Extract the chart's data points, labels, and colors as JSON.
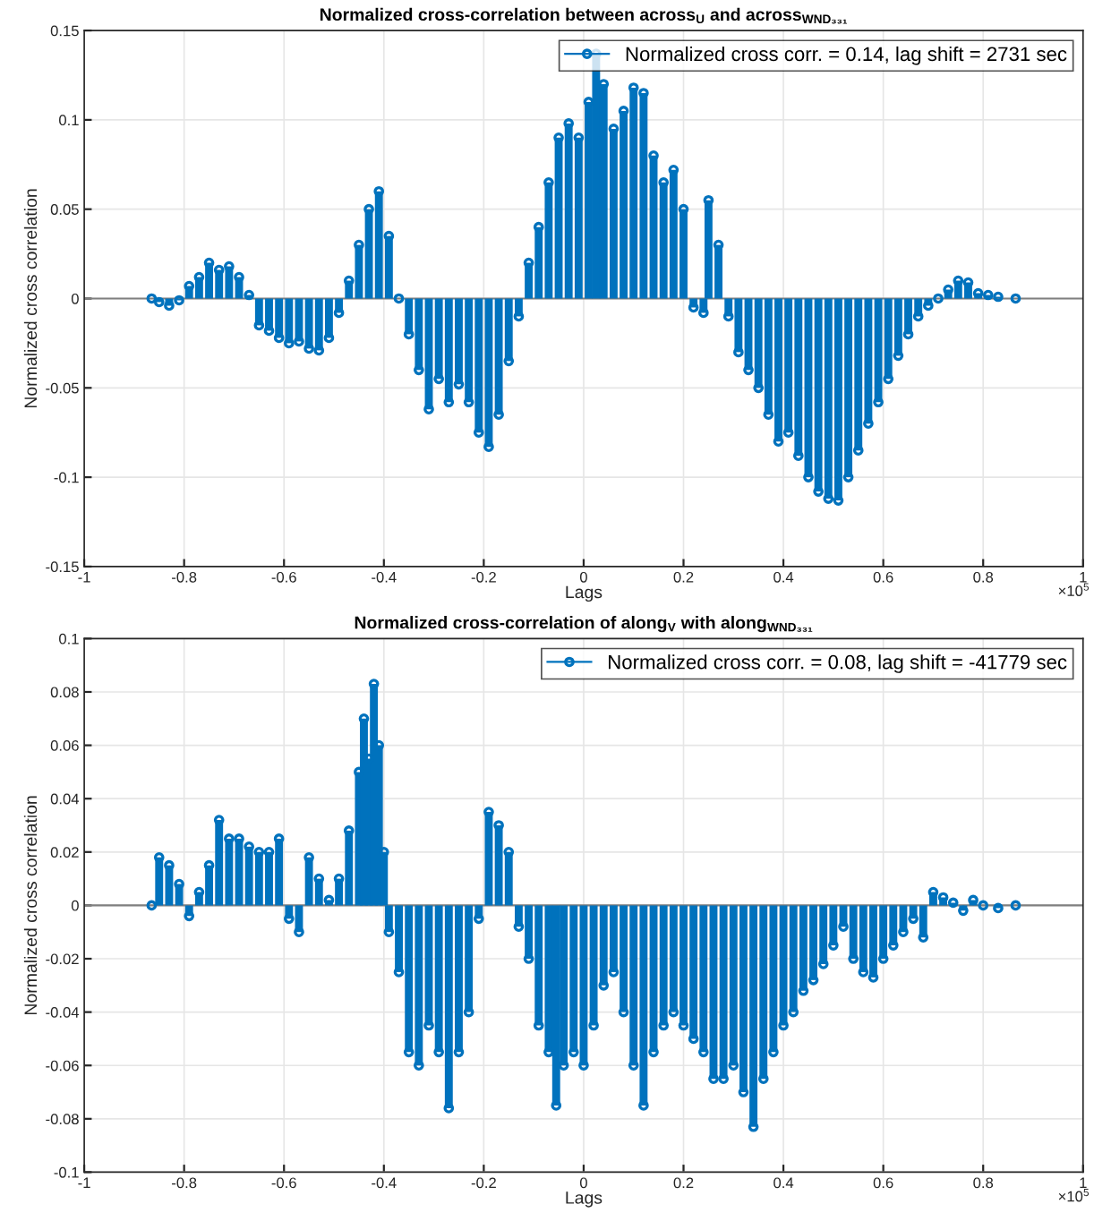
{
  "chart_data": [
    {
      "type": "lollipop",
      "title": "Normalized cross-correlation between across$_{U}$ and across$_{WND₃₃₁}$",
      "xlabel": "Lags",
      "ylabel": "Normalized cross correlation",
      "xlim": [
        -1,
        1
      ],
      "xticks": [
        -1,
        -0.8,
        -0.6,
        -0.4,
        -0.2,
        0,
        0.2,
        0.4,
        0.6,
        0.8,
        1
      ],
      "ylim": [
        -0.15,
        0.15
      ],
      "yticks": [
        -0.15,
        -0.1,
        -0.05,
        0,
        0.05,
        0.1,
        0.15
      ],
      "grid": true,
      "legend": "top right",
      "marker": "circle",
      "ref_lines": [
        {
          "axis": "y",
          "value": 0,
          "color": "#7f7f7f"
        }
      ],
      "annotations": [
        "×10$^{5}$"
      ],
      "series": [
        {
          "name": "Normalized cross corr. = 0.14, lag shift = 2731 sec",
          "color": "#0072bd",
          "x": [
            -0.865,
            -0.85,
            -0.83,
            -0.81,
            -0.79,
            -0.77,
            -0.75,
            -0.73,
            -0.71,
            -0.69,
            -0.67,
            -0.65,
            -0.63,
            -0.61,
            -0.59,
            -0.57,
            -0.55,
            -0.53,
            -0.51,
            -0.49,
            -0.47,
            -0.45,
            -0.43,
            -0.41,
            -0.39,
            -0.37,
            -0.35,
            -0.33,
            -0.31,
            -0.29,
            -0.27,
            -0.25,
            -0.23,
            -0.21,
            -0.19,
            -0.17,
            -0.15,
            -0.13,
            -0.11,
            -0.09,
            -0.07,
            -0.05,
            -0.03,
            -0.01,
            0.01,
            0.025,
            0.04,
            0.06,
            0.08,
            0.1,
            0.12,
            0.14,
            0.16,
            0.18,
            0.2,
            0.22,
            0.24,
            0.25,
            0.27,
            0.29,
            0.31,
            0.33,
            0.35,
            0.37,
            0.39,
            0.41,
            0.43,
            0.45,
            0.47,
            0.49,
            0.51,
            0.53,
            0.55,
            0.57,
            0.59,
            0.61,
            0.63,
            0.65,
            0.67,
            0.69,
            0.71,
            0.73,
            0.75,
            0.77,
            0.79,
            0.81,
            0.83,
            0.865
          ],
          "values": [
            0,
            -0.002,
            -0.004,
            -0.001,
            0.007,
            0.012,
            0.02,
            0.016,
            0.018,
            0.012,
            0.002,
            -0.015,
            -0.018,
            -0.022,
            -0.025,
            -0.024,
            -0.028,
            -0.029,
            -0.022,
            -0.008,
            0.01,
            0.03,
            0.05,
            0.06,
            0.035,
            0.0,
            -0.02,
            -0.04,
            -0.062,
            -0.045,
            -0.058,
            -0.048,
            -0.058,
            -0.075,
            -0.083,
            -0.065,
            -0.035,
            -0.01,
            0.02,
            0.04,
            0.065,
            0.09,
            0.098,
            0.09,
            0.11,
            0.137,
            0.12,
            0.095,
            0.105,
            0.118,
            0.115,
            0.08,
            0.065,
            0.072,
            0.05,
            -0.005,
            -0.008,
            0.055,
            0.03,
            -0.01,
            -0.03,
            -0.04,
            -0.05,
            -0.065,
            -0.08,
            -0.075,
            -0.088,
            -0.1,
            -0.108,
            -0.112,
            -0.113,
            -0.1,
            -0.085,
            -0.07,
            -0.058,
            -0.045,
            -0.032,
            -0.02,
            -0.01,
            -0.004,
            0.0,
            0.005,
            0.01,
            0.009,
            0.003,
            0.002,
            0.001,
            0
          ]
        }
      ]
    },
    {
      "type": "lollipop",
      "title": "Normalized cross-correlation of along$_{V}$ with along$_{WND₃₃₁}$",
      "xlabel": "Lags",
      "ylabel": "Normalized cross correlation",
      "xlim": [
        -1,
        1
      ],
      "xticks": [
        -1,
        -0.8,
        -0.6,
        -0.4,
        -0.2,
        0,
        0.2,
        0.4,
        0.6,
        0.8,
        1
      ],
      "ylim": [
        -0.1,
        0.1
      ],
      "yticks": [
        -0.1,
        -0.08,
        -0.06,
        -0.04,
        -0.02,
        0,
        0.02,
        0.04,
        0.06,
        0.08,
        0.1
      ],
      "grid": true,
      "legend": "top right",
      "marker": "circle",
      "ref_lines": [
        {
          "axis": "y",
          "value": 0,
          "color": "#7f7f7f"
        }
      ],
      "annotations": [
        "×10$^{5}$"
      ],
      "series": [
        {
          "name": "Normalized cross corr. = 0.08, lag shift = -41779 sec",
          "color": "#0072bd",
          "x": [
            -0.865,
            -0.85,
            -0.83,
            -0.81,
            -0.79,
            -0.77,
            -0.75,
            -0.73,
            -0.71,
            -0.69,
            -0.67,
            -0.65,
            -0.63,
            -0.61,
            -0.59,
            -0.57,
            -0.55,
            -0.53,
            -0.51,
            -0.49,
            -0.47,
            -0.45,
            -0.44,
            -0.43,
            -0.42,
            -0.41,
            -0.4,
            -0.39,
            -0.37,
            -0.35,
            -0.33,
            -0.31,
            -0.29,
            -0.27,
            -0.25,
            -0.23,
            -0.21,
            -0.19,
            -0.17,
            -0.15,
            -0.13,
            -0.11,
            -0.09,
            -0.07,
            -0.055,
            -0.04,
            -0.02,
            0,
            0.02,
            0.04,
            0.06,
            0.08,
            0.1,
            0.12,
            0.14,
            0.16,
            0.18,
            0.2,
            0.22,
            0.24,
            0.26,
            0.28,
            0.3,
            0.32,
            0.34,
            0.36,
            0.38,
            0.4,
            0.42,
            0.44,
            0.46,
            0.48,
            0.5,
            0.52,
            0.54,
            0.56,
            0.58,
            0.6,
            0.62,
            0.64,
            0.66,
            0.68,
            0.7,
            0.72,
            0.74,
            0.76,
            0.78,
            0.8,
            0.83,
            0.865
          ],
          "values": [
            0,
            0.018,
            0.015,
            0.008,
            -0.004,
            0.005,
            0.015,
            0.032,
            0.025,
            0.025,
            0.022,
            0.02,
            0.02,
            0.025,
            -0.005,
            -0.01,
            0.018,
            0.01,
            0.002,
            0.01,
            0.028,
            0.05,
            0.07,
            0.055,
            0.083,
            0.06,
            0.02,
            -0.01,
            -0.025,
            -0.055,
            -0.06,
            -0.045,
            -0.055,
            -0.076,
            -0.055,
            -0.04,
            -0.005,
            0.035,
            0.03,
            0.02,
            -0.008,
            -0.02,
            -0.045,
            -0.055,
            -0.075,
            -0.06,
            -0.055,
            -0.06,
            -0.045,
            -0.03,
            -0.025,
            -0.04,
            -0.06,
            -0.075,
            -0.055,
            -0.045,
            -0.04,
            -0.045,
            -0.05,
            -0.055,
            -0.065,
            -0.065,
            -0.06,
            -0.07,
            -0.083,
            -0.065,
            -0.055,
            -0.045,
            -0.04,
            -0.032,
            -0.028,
            -0.022,
            -0.015,
            -0.008,
            -0.02,
            -0.025,
            -0.027,
            -0.02,
            -0.015,
            -0.01,
            -0.005,
            -0.012,
            0.005,
            0.003,
            0.001,
            -0.002,
            0.002,
            0.0,
            -0.001,
            0
          ]
        }
      ]
    }
  ]
}
